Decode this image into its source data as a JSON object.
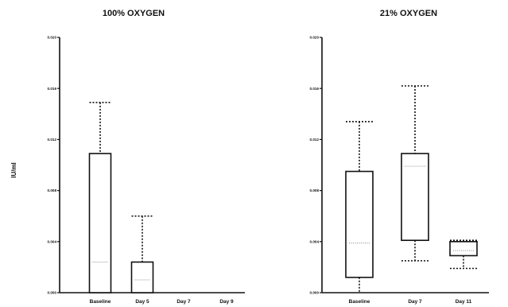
{
  "figure": {
    "y_axis_label": "IU/ml"
  },
  "chart_data": [
    {
      "type": "box",
      "title": "100% OXYGEN",
      "ylabel": "IU/ml",
      "ylim": [
        0,
        0.02
      ],
      "yticks": [
        "0.000",
        "0.004",
        "0.008",
        "0.012",
        "0.016",
        "0.020"
      ],
      "ytick_values": [
        0,
        0.004,
        0.008,
        0.012,
        0.016,
        0.02
      ],
      "categories": [
        "Baseline",
        "Day 5",
        "Day 7",
        "Day 9"
      ],
      "boxes": [
        {
          "category": "Baseline",
          "min": 0.0,
          "q1": 0.0,
          "median": 0.0024,
          "q3": 0.0109,
          "max": 0.0149
        },
        {
          "category": "Day 5",
          "min": 0.0,
          "q1": 0.0,
          "median": 0.001,
          "q3": 0.0024,
          "max": 0.006
        },
        {
          "category": "Day 7",
          "min": null,
          "q1": null,
          "median": null,
          "q3": null,
          "max": null
        },
        {
          "category": "Day 9",
          "min": null,
          "q1": null,
          "median": null,
          "q3": null,
          "max": null
        }
      ]
    },
    {
      "type": "box",
      "title": "21% OXYGEN",
      "ylabel": "",
      "ylim": [
        0,
        0.02
      ],
      "yticks": [
        "0.000",
        "0.004",
        "0.008",
        "0.012",
        "0.016",
        "0.020"
      ],
      "ytick_values": [
        0,
        0.004,
        0.008,
        0.012,
        0.016,
        0.02
      ],
      "categories": [
        "Baseline",
        "Day 7",
        "Day 11"
      ],
      "boxes": [
        {
          "category": "Baseline",
          "min": 0.0,
          "q1": 0.0012,
          "median": 0.0039,
          "q3": 0.0095,
          "max": 0.0134
        },
        {
          "category": "Day 7",
          "min": 0.0025,
          "q1": 0.0041,
          "median": 0.0099,
          "q3": 0.0109,
          "max": 0.0162
        },
        {
          "category": "Day 11",
          "min": 0.0019,
          "q1": 0.0029,
          "median": 0.0033,
          "q3": 0.004,
          "max": 0.0041
        }
      ]
    }
  ]
}
